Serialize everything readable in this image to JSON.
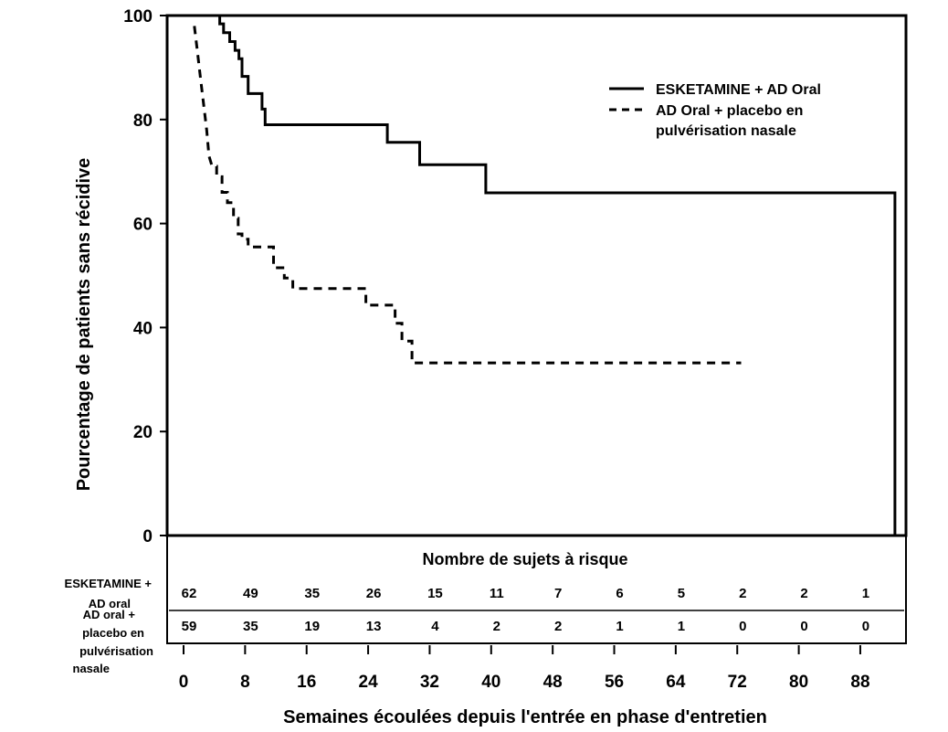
{
  "chart_data": {
    "type": "line",
    "ylabel": "Pourcentage de patients sans récidive",
    "xlabel": "Semaines écoulées depuis l'entrée en phase d'entretien",
    "ylim": [
      0,
      100
    ],
    "xlim": [
      0,
      92
    ],
    "yticks": [
      "0",
      "20",
      "40",
      "60",
      "80",
      "100"
    ],
    "xticks": [
      "0",
      "8",
      "16",
      "24",
      "32",
      "40",
      "48",
      "56",
      "64",
      "72",
      "80",
      "88"
    ],
    "legend_position": "top-right",
    "series": [
      {
        "name": "ESKETAMINE + AD Oral",
        "style": "solid",
        "points": [
          [
            3.6,
            100
          ],
          [
            4.7,
            100
          ],
          [
            4.7,
            98.4
          ],
          [
            5.2,
            98.4
          ],
          [
            5.2,
            96.7
          ],
          [
            6,
            96.7
          ],
          [
            6,
            95
          ],
          [
            6.7,
            95
          ],
          [
            6.7,
            93.3
          ],
          [
            7.2,
            93.3
          ],
          [
            7.2,
            91.7
          ],
          [
            7.6,
            91.7
          ],
          [
            7.6,
            88.3
          ],
          [
            8.4,
            88.3
          ],
          [
            8.4,
            85
          ],
          [
            10.2,
            85
          ],
          [
            10.2,
            82
          ],
          [
            10.6,
            82
          ],
          [
            10.6,
            79
          ],
          [
            26.5,
            79
          ],
          [
            26.5,
            75.6
          ],
          [
            30.7,
            75.6
          ],
          [
            30.7,
            71.3
          ],
          [
            39.3,
            71.3
          ],
          [
            39.3,
            65.9
          ],
          [
            92.5,
            65.9
          ],
          [
            92.5,
            0
          ]
        ]
      },
      {
        "name": "AD Oral + placebo en pulvérisation nasale",
        "style": "dashed",
        "points": [
          [
            1.4,
            98
          ],
          [
            1.8,
            93
          ],
          [
            2.2,
            88
          ],
          [
            2.6,
            83
          ],
          [
            3,
            78
          ],
          [
            3.3,
            73
          ],
          [
            3.7,
            71
          ],
          [
            4.3,
            71
          ],
          [
            4.3,
            69
          ],
          [
            5,
            69
          ],
          [
            5,
            66
          ],
          [
            5.7,
            66
          ],
          [
            5.7,
            64
          ],
          [
            6.5,
            64
          ],
          [
            6.5,
            61
          ],
          [
            7.1,
            61
          ],
          [
            7.1,
            58
          ],
          [
            7.6,
            58
          ],
          [
            7.6,
            57
          ],
          [
            8.4,
            57
          ],
          [
            8.4,
            55.5
          ],
          [
            11.7,
            55.5
          ],
          [
            11.7,
            51.5
          ],
          [
            13.1,
            51.5
          ],
          [
            13.1,
            49.5
          ],
          [
            14.2,
            49.5
          ],
          [
            14.2,
            47.5
          ],
          [
            23.7,
            47.5
          ],
          [
            23.7,
            44.3
          ],
          [
            27.5,
            44.3
          ],
          [
            27.5,
            40.8
          ],
          [
            28.4,
            40.8
          ],
          [
            28.4,
            37.4
          ],
          [
            29.7,
            37.4
          ],
          [
            29.7,
            33.2
          ],
          [
            72.5,
            33.2
          ]
        ]
      }
    ]
  },
  "risk_table": {
    "title": "Nombre de sujets à risque",
    "row1_label_line1": "ESKETAMINE +",
    "row1_label_line2": "AD oral",
    "row1_values": [
      "62",
      "49",
      "35",
      "26",
      "15",
      "11",
      "7",
      "6",
      "5",
      "2",
      "2",
      "1"
    ],
    "row2_label_line1": "AD oral +",
    "row2_label_line2": "placebo en",
    "row2_label_line3": "pulvérisation",
    "row2_label_line4": "nasale",
    "row2_values": [
      "59",
      "35",
      "19",
      "13",
      "4",
      "2",
      "2",
      "1",
      "1",
      "0",
      "0",
      "0"
    ]
  },
  "legend": {
    "item1_line1": "ESKETAMINE + AD Oral",
    "item2_line1": "AD Oral + placebo en",
    "item2_line2": "pulvérisation nasale"
  }
}
